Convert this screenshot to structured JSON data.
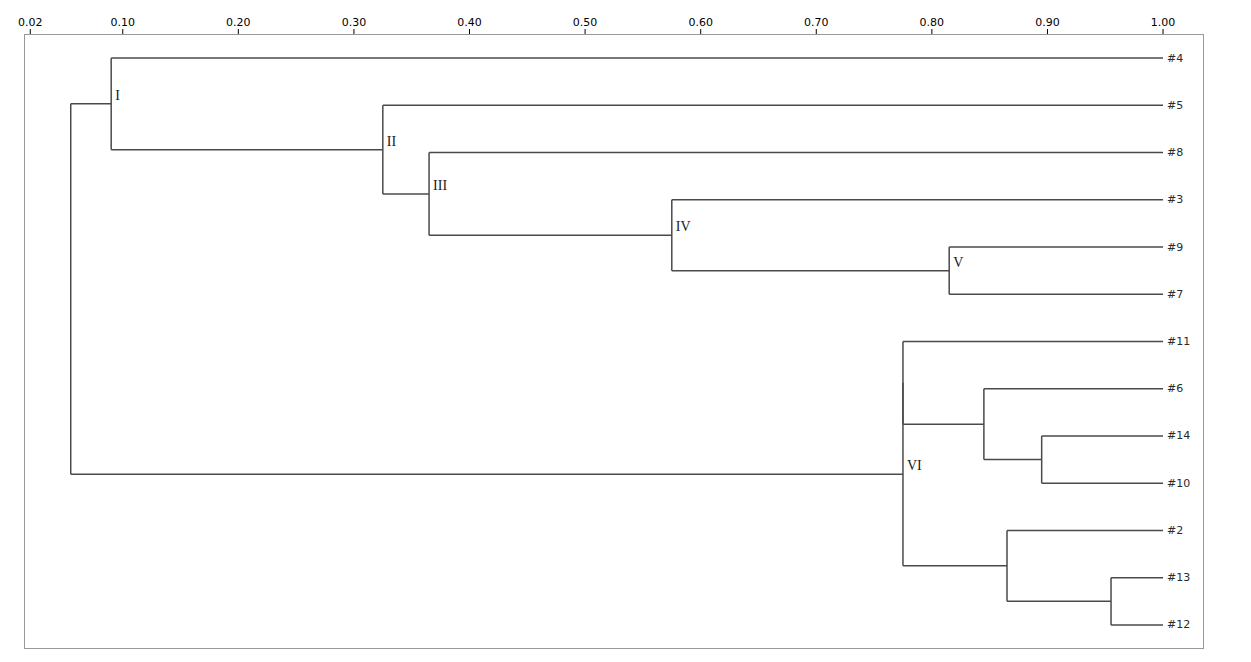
{
  "chart_data": {
    "type": "dendrogram",
    "color": "#4a4a4a",
    "xlim": [
      0.015,
      1.035
    ],
    "xticks": [
      0.02,
      {
        "value": 0.1,
        "label": "0.10"
      },
      {
        "value": 0.2,
        "label": "0.20"
      },
      {
        "value": 0.3,
        "label": "0.30"
      },
      {
        "value": 0.4,
        "label": "0.40"
      },
      {
        "value": 0.5,
        "label": "0.50"
      },
      {
        "value": 0.6,
        "label": "0.60"
      },
      {
        "value": 0.7,
        "label": "0.70"
      },
      {
        "value": 0.8,
        "label": "0.80"
      },
      {
        "value": 0.9,
        "label": "0.90"
      },
      {
        "value": 1.0,
        "label": "1.00"
      }
    ],
    "leaf_x": 1.0,
    "tree": {
      "x": 0.055,
      "children": [
        {
          "label": "I",
          "x": 0.09,
          "children": [
            "#4",
            {
              "label": "II",
              "x": 0.325,
              "children": [
                "#5",
                {
                  "label": "III",
                  "x": 0.365,
                  "children": [
                    "#8",
                    {
                      "label": "IV",
                      "x": 0.575,
                      "children": [
                        "#3",
                        {
                          "label": "V",
                          "x": 0.815,
                          "children": [
                            "#9",
                            "#7"
                          ]
                        }
                      ]
                    }
                  ]
                }
              ]
            }
          ]
        },
        {
          "label": "VI",
          "x": 0.775,
          "children": [
            {
              "x": 0.775,
              "children": [
                "#11",
                {
                  "x": 0.845,
                  "children": [
                    "#6",
                    {
                      "x": 0.895,
                      "children": [
                        "#14",
                        "#10"
                      ]
                    }
                  ]
                }
              ]
            },
            {
              "x": 0.865,
              "children": [
                "#2",
                {
                  "x": 0.955,
                  "children": [
                    "#13",
                    "#12"
                  ]
                }
              ]
            }
          ]
        }
      ]
    }
  }
}
